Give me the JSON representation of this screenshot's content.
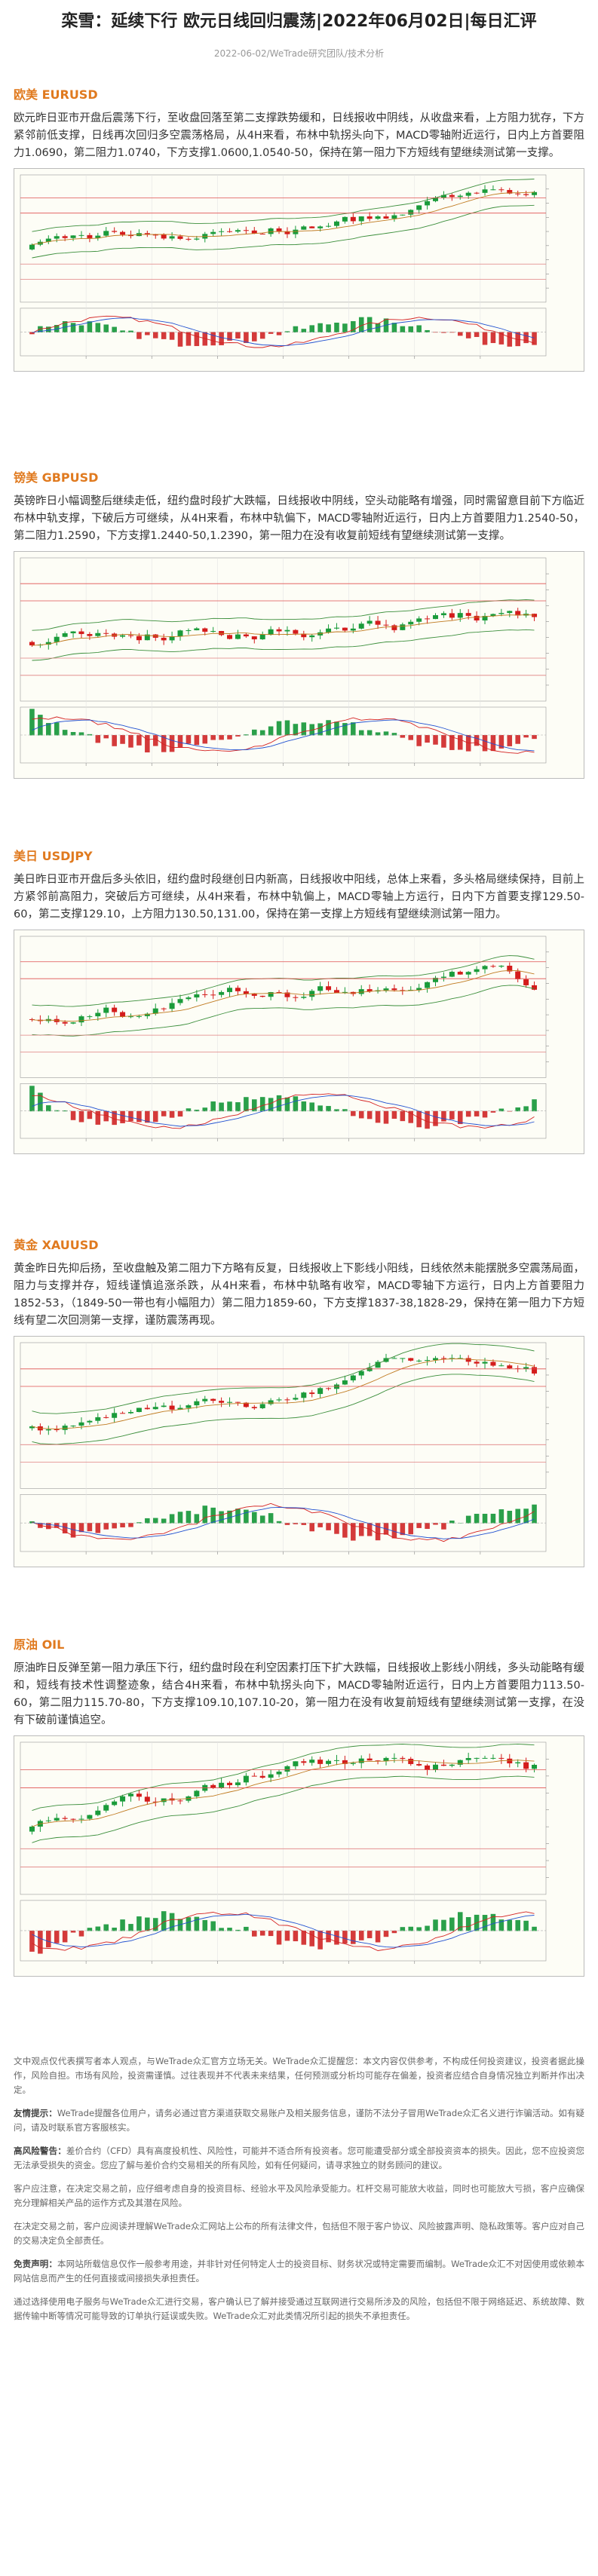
{
  "header": {
    "title": "栾雪：延续下行 欧元日线回归震荡|2022年06月02日|每日汇评",
    "meta": "2022-06-02/WeTrade研究团队/技术分析"
  },
  "sections": [
    {
      "heading": "欧美 EURUSD",
      "text": "欧元昨日亚市开盘后震荡下行，至收盘回落至第二支撑跌势缓和，日线报收中阴线，从收盘来看，上方阻力犹存，下方紧邻前低支撑，日线再次回归多空震荡格局，从4H来看，布林中轨拐头向下，MACD零轴附近运行，日内上方首要阻力1.0690，第二阻力1.0740，下方支撑1.0600,1.0540-50，保持在第一阻力下方短线有望继续测试第一支撑。"
    },
    {
      "heading": "镑美 GBPUSD",
      "text": "英镑昨日小幅调整后继续走低，纽约盘时段扩大跌幅，日线报收中阴线，空头动能略有增强，同时需留意目前下方临近布林中轨支撑，下破后方可继续，从4H来看，布林中轨偏下，MACD零轴附近运行，日内上方首要阻力1.2540-50，第二阻力1.2590，下方支撑1.2440-50,1.2390，第一阻力在没有收复前短线有望继续测试第一支撑。"
    },
    {
      "heading": "美日 USDJPY",
      "text": "美日昨日亚市开盘后多头依旧，纽约盘时段继创日内新高，日线报收中阳线，总体上来看，多头格局继续保持，目前上方紧邻前高阻力，突破后方可继续，从4H来看，布林中轨偏上，MACD零轴上方运行，日内下方首要支撑129.50-60，第二支撑129.10，上方阻力130.50,131.00，保持在第一支撑上方短线有望继续测试第一阻力。"
    },
    {
      "heading": "黄金 XAUUSD",
      "text": "黄金昨日先抑后扬，至收盘触及第二阻力下方略有反复，日线报收上下影线小阳线，日线依然未能摆脱多空震荡局面，阻力与支撑并存，短线谨慎追涨杀跌，从4H来看，布林中轨略有收窄，MACD零轴下方运行，日内上方首要阻力1852-53，（1849-50一带也有小幅阻力）第二阻力1859-60，下方支撑1837-38,1828-29，保持在第一阻力下方短线有望二次回测第一支撑，谨防震荡再现。"
    },
    {
      "heading": "原油 OIL",
      "text": "原油昨日反弹至第一阻力承压下行，纽约盘时段在利空因素打压下扩大跌幅，日线报收上影线小阴线，多头动能略有缓和，短线有技术性调整迹象，结合4H来看，布林中轨拐头向下，MACD零轴附近运行，日内上方首要阻力113.50-60，第二阻力115.70-80，下方支撑109.10,107.10-20，第一阻力在没有收复前短线有望继续测试第一支撑，在没有下破前谨慎追空。"
    }
  ],
  "disclaimer": [
    {
      "text": "文中观点仅代表撰写者本人观点，与WeTrade众汇官方立场无关。WeTrade众汇提醒您：本文内容仅供参考，不构成任何投资建议，投资者据此操作，风险自担。市场有风险，投资需谨慎。过往表现并不代表未来结果，任何预测或分析均可能存在偏差，投资者应结合自身情况独立判断并作出决定。"
    },
    {
      "label": "友情提示：",
      "text": "WeTrade提醒各位用户，请务必通过官方渠道获取交易账户及相关服务信息，谨防不法分子冒用WeTrade众汇名义进行诈骗活动。如有疑问，请及时联系官方客服核实。"
    },
    {
      "label": "高风险警告：",
      "text": "差价合约（CFD）具有高度投机性、风险性，可能并不适合所有投资者。您可能遭受部分或全部投资资本的损失。因此，您不应投资您无法承受损失的资金。您应了解与差价合约交易相关的所有风险，如有任何疑问，请寻求独立的财务顾问的建议。"
    },
    {
      "text": "客户应注意，在决定交易之前，应仔细考虑自身的投资目标、经验水平及风险承受能力。杠杆交易可能放大收益，同时也可能放大亏损，客户应确保充分理解相关产品的运作方式及其潜在风险。"
    },
    {
      "text": "在决定交易之前，客户应阅读并理解WeTrade众汇网站上公布的所有法律文件，包括但不限于客户协议、风险披露声明、隐私政策等。客户应对自己的交易决定负全部责任。"
    },
    {
      "label": "免责声明：",
      "text": "本网站所载信息仅作一般参考用途，并非针对任何特定人士的投资目标、财务状况或特定需要而编制。WeTrade众汇不对因使用或依赖本网站信息而产生的任何直接或间接损失承担责任。"
    },
    {
      "text": "通过选择使用电子服务与WeTrade众汇进行交易，客户确认已了解并接受通过互联网进行交易所涉及的风险，包括但不限于网络延迟、系统故障、数据传输中断等情况可能导致的订单执行延误或失败。WeTrade众汇对此类情况所引起的损失不承担责任。"
    }
  ]
}
